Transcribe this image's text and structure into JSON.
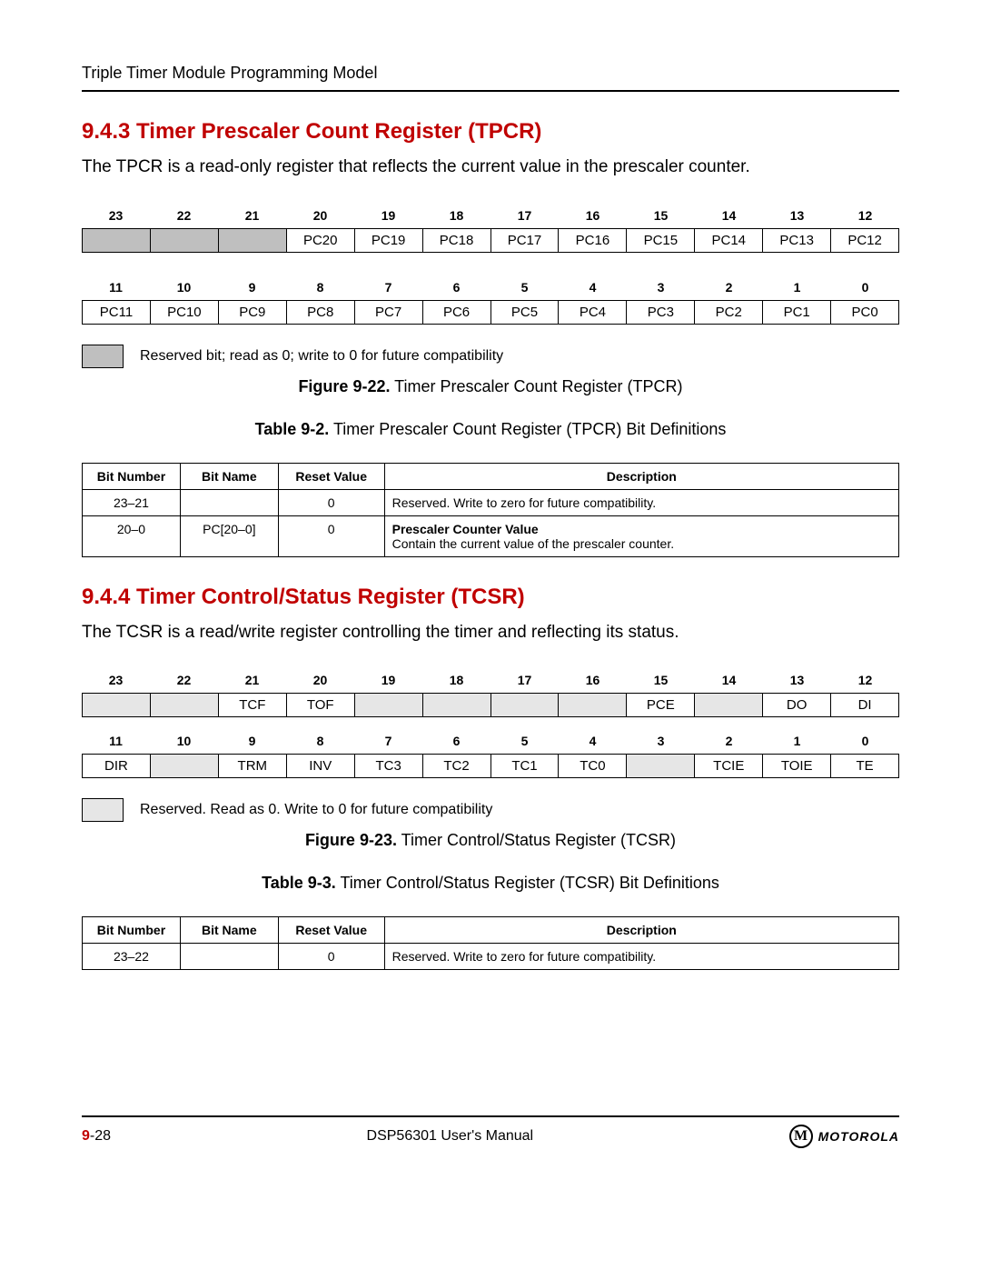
{
  "header": {
    "running": "Triple Timer Module Programming Model"
  },
  "sec943": {
    "heading": "9.4.3 Timer Prescaler Count Register (TPCR)",
    "para": "The TPCR is a read-only register that reflects the current value in the prescaler counter.",
    "bits_hi_nums": [
      "23",
      "22",
      "21",
      "20",
      "19",
      "18",
      "17",
      "16",
      "15",
      "14",
      "13",
      "12"
    ],
    "bits_hi_cells": [
      "",
      "",
      "",
      "PC20",
      "PC19",
      "PC18",
      "PC17",
      "PC16",
      "PC15",
      "PC14",
      "PC13",
      "PC12"
    ],
    "bits_hi_reserved_idx": [
      0,
      1,
      2
    ],
    "bits_lo_nums": [
      "11",
      "10",
      "9",
      "8",
      "7",
      "6",
      "5",
      "4",
      "3",
      "2",
      "1",
      "0"
    ],
    "bits_lo_cells": [
      "PC11",
      "PC10",
      "PC9",
      "PC8",
      "PC7",
      "PC6",
      "PC5",
      "PC4",
      "PC3",
      "PC2",
      "PC1",
      "PC0"
    ],
    "legend": "Reserved bit; read as 0; write to 0 for future compatibility",
    "fig_bold": "Figure 9-22.",
    "fig_rest": " Timer Prescaler Count Register (TPCR)",
    "tab_bold": "Table 9-2.",
    "tab_rest": " Timer Prescaler Count Register (TPCR) Bit Definitions",
    "def_headers": [
      "Bit Number",
      "Bit Name",
      "Reset Value",
      "Description"
    ],
    "def_rows": [
      {
        "num": "23–21",
        "name": "",
        "reset": "0",
        "desc_plain": "Reserved. Write to zero for future compatibility."
      },
      {
        "num": "20–0",
        "name": "PC[20–0]",
        "reset": "0",
        "desc_bold": "Prescaler Counter Value",
        "desc_plain": "Contain the current value of the prescaler counter."
      }
    ]
  },
  "sec944": {
    "heading": "9.4.4 Timer Control/Status Register (TCSR)",
    "para": "The TCSR is a read/write register controlling the timer and reflecting its status.",
    "bits_hi_nums": [
      "23",
      "22",
      "21",
      "20",
      "19",
      "18",
      "17",
      "16",
      "15",
      "14",
      "13",
      "12"
    ],
    "bits_hi": [
      {
        "t": "",
        "r": true
      },
      {
        "t": "",
        "r": true
      },
      {
        "t": "TCF"
      },
      {
        "t": "TOF"
      },
      {
        "t": "",
        "r": true
      },
      {
        "t": "",
        "r": true
      },
      {
        "t": "",
        "r": true
      },
      {
        "t": "",
        "r": true
      },
      {
        "t": "PCE"
      },
      {
        "t": "",
        "r": true
      },
      {
        "t": "DO"
      },
      {
        "t": "DI"
      }
    ],
    "bits_lo_nums": [
      "11",
      "10",
      "9",
      "8",
      "7",
      "6",
      "5",
      "4",
      "3",
      "2",
      "1",
      "0"
    ],
    "bits_lo": [
      {
        "t": "DIR"
      },
      {
        "t": "",
        "r": true
      },
      {
        "t": "TRM"
      },
      {
        "t": "INV"
      },
      {
        "t": "TC3"
      },
      {
        "t": "TC2"
      },
      {
        "t": "TC1"
      },
      {
        "t": "TC0"
      },
      {
        "t": "",
        "r": true
      },
      {
        "t": "TCIE"
      },
      {
        "t": "TOIE"
      },
      {
        "t": "TE"
      }
    ],
    "legend": "Reserved. Read as 0. Write to 0 for future compatibility",
    "fig_bold": "Figure 9-23.",
    "fig_rest": " Timer Control/Status Register (TCSR)",
    "tab_bold": "Table 9-3.",
    "tab_rest": " Timer Control/Status Register (TCSR) Bit Definitions",
    "def_headers": [
      "Bit Number",
      "Bit Name",
      "Reset Value",
      "Description"
    ],
    "def_rows": [
      {
        "num": "23–22",
        "name": "",
        "reset": "0",
        "desc_plain": "Reserved. Write to zero for future compatibility."
      }
    ]
  },
  "footer": {
    "page_chapter": "9",
    "page_num": "-28",
    "center": "DSP56301 User's Manual",
    "logo_letter": "M",
    "logo_word": "MOTOROLA"
  }
}
